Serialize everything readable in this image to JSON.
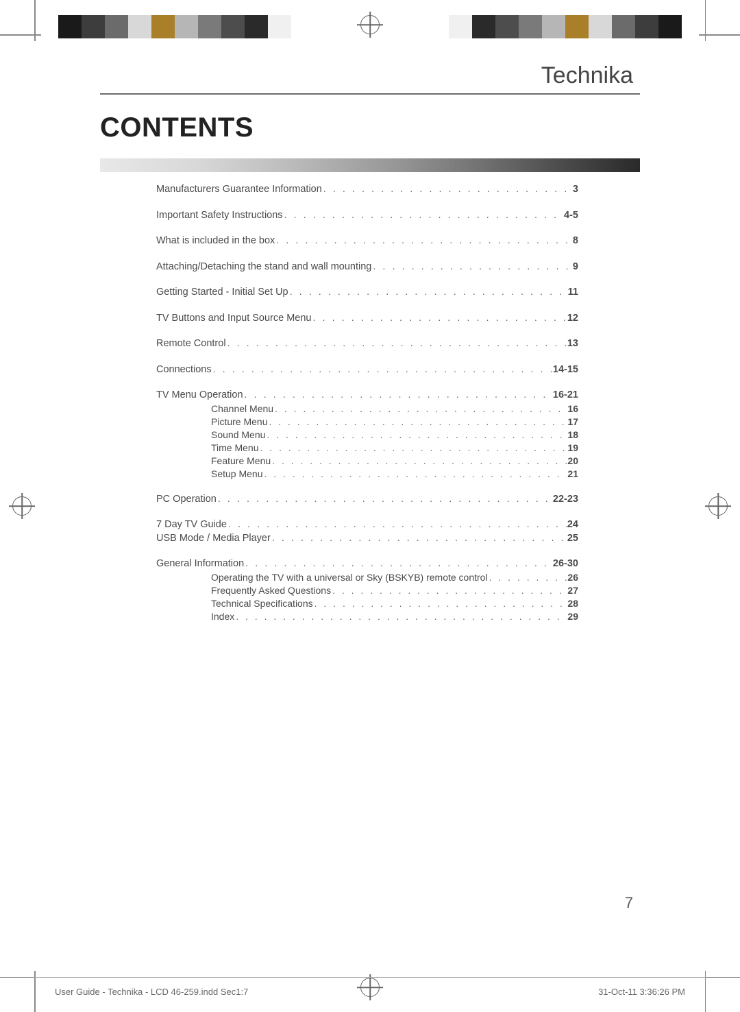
{
  "brand": "Technika",
  "title": "CONTENTS",
  "page_number": "7",
  "footer": {
    "left": "User Guide - Technika - LCD 46-259.indd   Sec1:7",
    "right": "31-Oct-11   3:36:26 PM"
  },
  "gradient": {
    "from": "#e8e8e8",
    "to": "#2a2a2a"
  },
  "toc_text_color": "#4a4a4a",
  "toc_fontsize": 14.5,
  "title_fontsize": 40,
  "brand_fontsize": 34,
  "color_bar_swatches": [
    "#1a1a1a",
    "#3d3d3d",
    "#6b6b6b",
    "#d8d8d8",
    "#aa7f2a",
    "#b6b6b6",
    "#7a7a7a",
    "#4d4d4d",
    "#2a2a2a",
    "#f0f0f0"
  ],
  "toc": [
    {
      "label": "Manufacturers Guarantee Information",
      "page": "3"
    },
    {
      "label": "Important Safety Instructions",
      "page": "4-5"
    },
    {
      "label": "What is included in the box",
      "page": "8"
    },
    {
      "label": "Attaching/Detaching the stand and wall mounting",
      "page": "9"
    },
    {
      "label": "Getting Started - Initial Set Up",
      "page": "11"
    },
    {
      "label": "TV Buttons and Input Source Menu",
      "page": "12"
    },
    {
      "label": "Remote Control",
      "page": "13"
    },
    {
      "label": "Connections",
      "page": "14-15"
    },
    {
      "label": "TV Menu Operation",
      "page": "16-21",
      "children": [
        {
          "label": "Channel Menu",
          "page": "16"
        },
        {
          "label": "Picture Menu",
          "page": "17"
        },
        {
          "label": "Sound Menu",
          "page": "18"
        },
        {
          "label": "Time Menu",
          "page": "19"
        },
        {
          "label": "Feature Menu",
          "page": "20"
        },
        {
          "label": "Setup Menu",
          "page": "21"
        }
      ]
    },
    {
      "label": "PC Operation",
      "page": "22-23"
    },
    {
      "label": "7 Day TV Guide",
      "page": "24",
      "tight_after": true
    },
    {
      "label": "USB Mode / Media Player",
      "page": "25"
    },
    {
      "label": "General Information",
      "page": "26-30",
      "children": [
        {
          "label": "Operating the TV with a universal or Sky (BSKYB) remote control",
          "page": "26"
        },
        {
          "label": "Frequently Asked Questions",
          "page": "27"
        },
        {
          "label": "Technical Specifications",
          "page": "28"
        },
        {
          "label": "Index",
          "page": "29"
        }
      ]
    }
  ]
}
